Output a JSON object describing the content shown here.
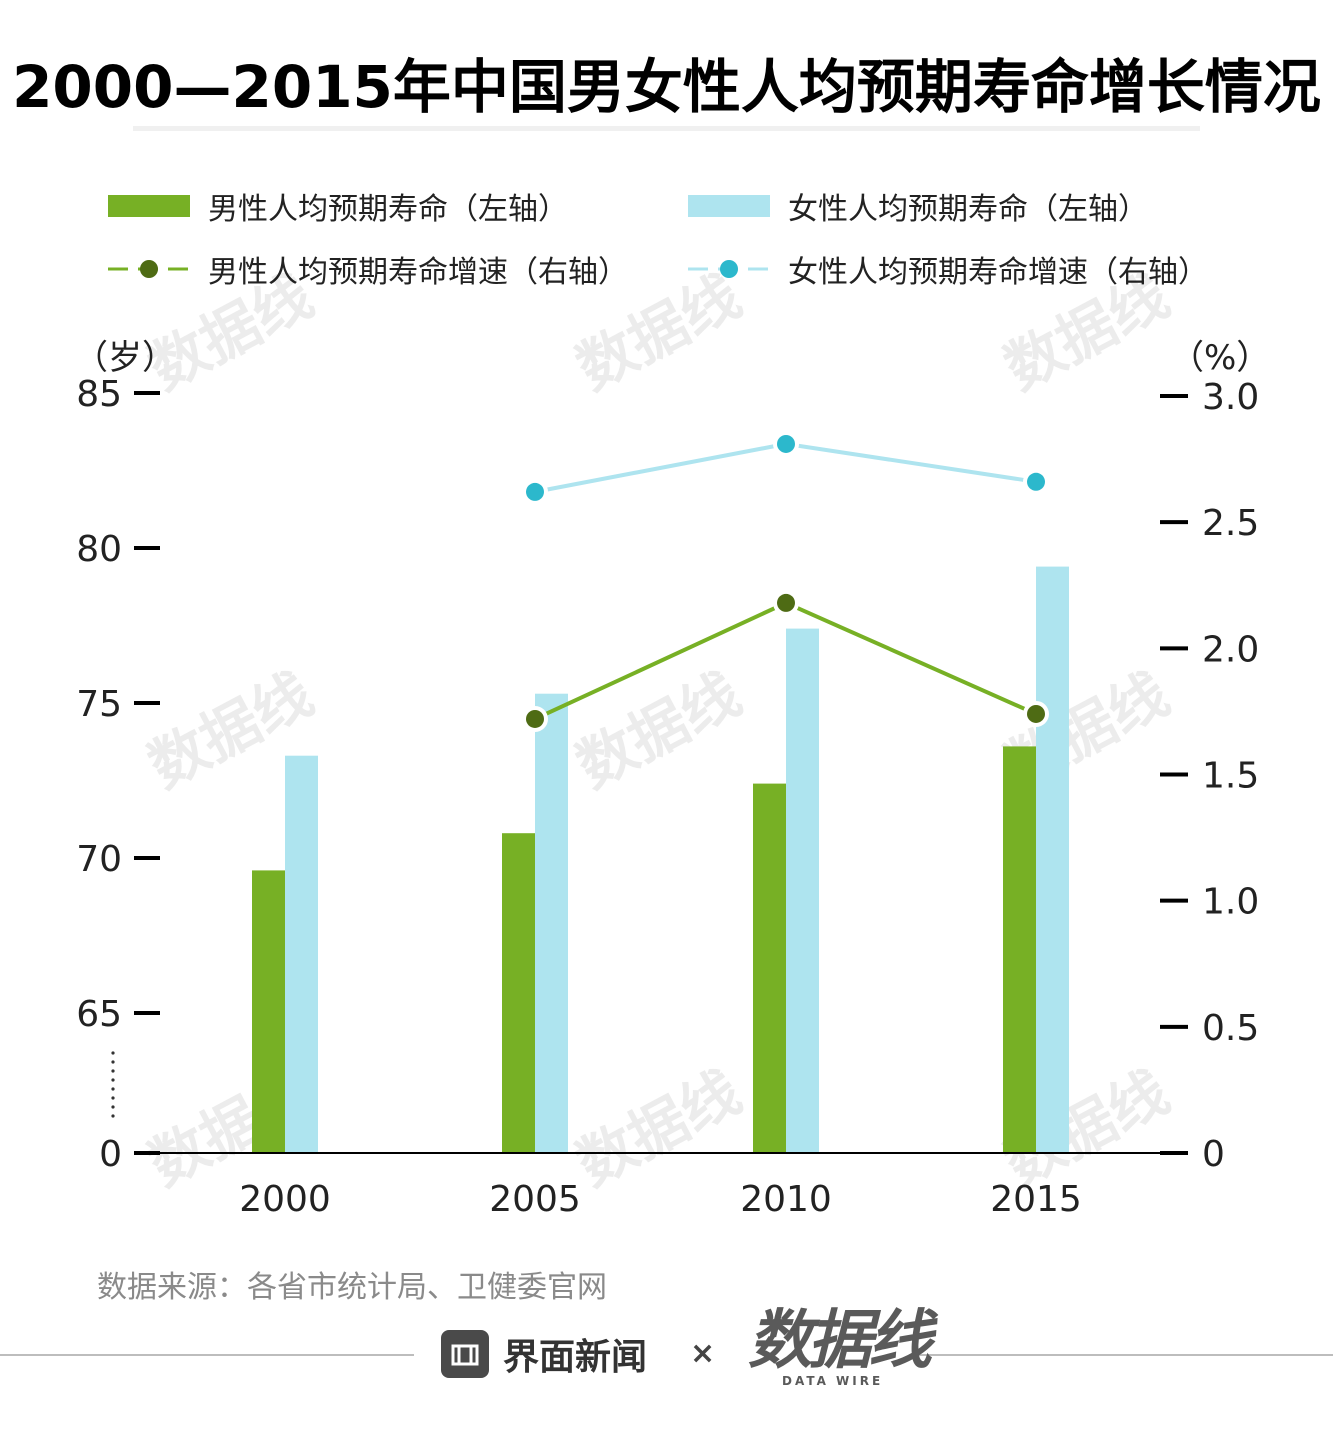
{
  "title": "2000—2015年中国男女性人均预期寿命增长情况",
  "legend": {
    "male_bar": "男性人均预期寿命（左轴）",
    "female_bar": "女性人均预期寿命（左轴）",
    "male_line": "男性人均预期寿命增速（右轴）",
    "female_line": "女性人均预期寿命增速（右轴）"
  },
  "axis_units": {
    "left": "（岁）",
    "right": "（%）"
  },
  "source": "数据来源：各省市统计局、卫健委官网",
  "footer": {
    "brand": "界面新闻",
    "times": "×",
    "logo_main": "数据线",
    "logo_sub": "DATA WIRE"
  },
  "watermark": {
    "main": "数据线",
    "sub": "DATA WIRE"
  },
  "colors": {
    "male_bar": "#77b025",
    "female_bar": "#aee4ef",
    "male_line": "#77b025",
    "male_marker": "#4e6b14",
    "female_line": "#aee4ef",
    "female_marker": "#2cb8cc"
  },
  "chart_data": {
    "type": "bar",
    "categories": [
      "2000",
      "2005",
      "2010",
      "2015"
    ],
    "left_axis": {
      "ticks": [
        "0",
        "65",
        "70",
        "75",
        "80",
        "85"
      ],
      "broken": true,
      "range": [
        65,
        85
      ]
    },
    "right_axis": {
      "ticks": [
        "0",
        "0.5",
        "1.0",
        "1.5",
        "2.0",
        "2.5",
        "3.0"
      ],
      "range": [
        0,
        3.0
      ]
    },
    "series": [
      {
        "name": "男性人均预期寿命（左轴）",
        "type": "bar",
        "axis": "left",
        "values": [
          69.6,
          70.8,
          72.4,
          73.6
        ]
      },
      {
        "name": "女性人均预期寿命（左轴）",
        "type": "bar",
        "axis": "left",
        "values": [
          73.3,
          75.3,
          77.4,
          79.4
        ]
      },
      {
        "name": "男性人均预期寿命增速（右轴）",
        "type": "line",
        "axis": "right",
        "values": [
          null,
          1.72,
          2.18,
          1.74
        ]
      },
      {
        "name": "女性人均预期寿命增速（右轴）",
        "type": "line",
        "axis": "right",
        "values": [
          null,
          2.62,
          2.81,
          2.66
        ]
      }
    ],
    "grid": false,
    "legend_position": "top"
  }
}
